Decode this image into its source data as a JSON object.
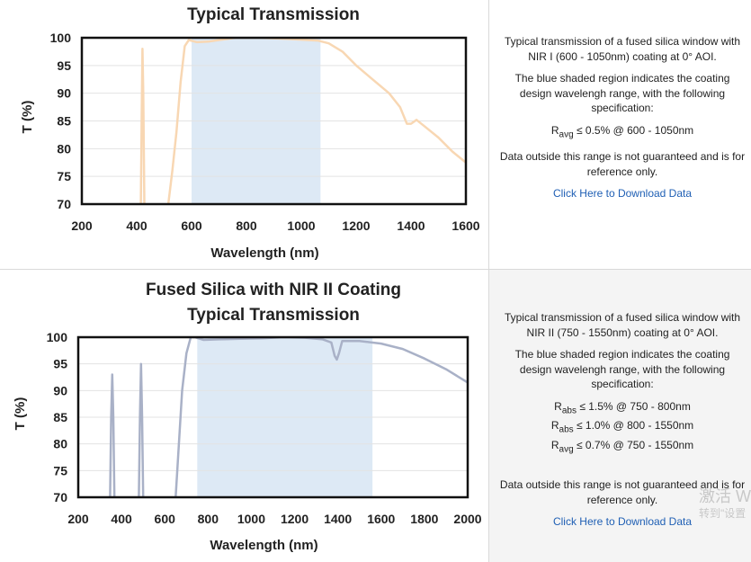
{
  "charts": [
    {
      "title_line1": "",
      "title_line2": "Typical Transmission",
      "ylabel": "T (%)",
      "xlabel": "Wavelength (nm)",
      "description": {
        "intro": "Typical transmission of a fused silica window with NIR I (600 - 1050nm) coating at 0° AOI.",
        "shaded": "The blue shaded region indicates the coating design wavelengh range, with the following specification:",
        "specs": [
          {
            "sym": "R",
            "sub": "avg",
            "text": "≤ 0.5% @ 600 - 1050nm"
          }
        ],
        "note": "Data outside this range is not guaranteed and is for reference only.",
        "link": "Click Here to Download Data"
      }
    },
    {
      "title_line1": "Fused Silica with NIR II Coating",
      "title_line2": "Typical Transmission",
      "ylabel": "T (%)",
      "xlabel": "Wavelength (nm)",
      "description": {
        "intro": "Typical transmission of a fused silica window with NIR II (750 - 1550nm) coating at 0° AOI.",
        "shaded": "The blue shaded region indicates the coating design wavelengh range, with the following specification:",
        "specs": [
          {
            "sym": "R",
            "sub": "abs",
            "text": "≤ 1.5% @ 750 - 800nm"
          },
          {
            "sym": "R",
            "sub": "abs",
            "text": "≤ 1.0% @ 800 - 1550nm"
          },
          {
            "sym": "R",
            "sub": "avg",
            "text": "≤ 0.7% @ 750 - 1550nm"
          }
        ],
        "note": "Data outside this range is not guaranteed and is for reference only.",
        "link": "Click Here to Download Data"
      }
    }
  ],
  "watermark": {
    "line1": "激活 W",
    "line2": "转到\"设置"
  },
  "chart_data": [
    {
      "type": "line",
      "title": "Typical Transmission",
      "xlabel": "Wavelength (nm)",
      "ylabel": "T (%)",
      "xlim": [
        200,
        1600
      ],
      "ylim": [
        70,
        100
      ],
      "xticks": [
        200,
        400,
        600,
        800,
        1000,
        1200,
        1400,
        1600
      ],
      "yticks": [
        70,
        75,
        80,
        85,
        90,
        95,
        100
      ],
      "grid": true,
      "shaded_region": [
        600,
        1070
      ],
      "shade_color": "#dde9f5",
      "line_color": "#f8d7b3",
      "series": [
        {
          "segments": [
            [
              [
                415,
                70
              ],
              [
                418,
                85
              ],
              [
                421,
                98
              ],
              [
                424,
                90
              ],
              [
                428,
                70
              ]
            ],
            [
              [
                515,
                70
              ],
              [
                530,
                76
              ],
              [
                545,
                83
              ],
              [
                560,
                92
              ],
              [
                575,
                98.5
              ],
              [
                590,
                99.6
              ],
              [
                620,
                99.2
              ],
              [
                660,
                99.3
              ],
              [
                700,
                99.6
              ],
              [
                760,
                100
              ],
              [
                850,
                100
              ],
              [
                950,
                99.8
              ],
              [
                1060,
                99.5
              ],
              [
                1100,
                99
              ],
              [
                1150,
                97.5
              ],
              [
                1200,
                95
              ],
              [
                1260,
                92.5
              ],
              [
                1320,
                90
              ],
              [
                1360,
                87.5
              ],
              [
                1385,
                84.5
              ],
              [
                1400,
                84.5
              ],
              [
                1420,
                85.2
              ],
              [
                1450,
                84
              ],
              [
                1500,
                82
              ],
              [
                1550,
                79.5
              ],
              [
                1600,
                77.5
              ]
            ]
          ]
        }
      ]
    },
    {
      "type": "line",
      "title": "Fused Silica with NIR II Coating Typical Transmission",
      "xlabel": "Wavelength (nm)",
      "ylabel": "T (%)",
      "xlim": [
        200,
        2000
      ],
      "ylim": [
        70,
        100
      ],
      "xticks": [
        200,
        400,
        600,
        800,
        1000,
        1200,
        1400,
        1600,
        1800,
        2000
      ],
      "yticks": [
        70,
        75,
        80,
        85,
        90,
        95,
        100
      ],
      "grid": true,
      "shaded_region": [
        750,
        1560
      ],
      "shade_color": "#dde9f5",
      "line_color": "#a9b1c7",
      "series": [
        {
          "segments": [
            [
              [
                347,
                70
              ],
              [
                352,
                85
              ],
              [
                357,
                93
              ],
              [
                362,
                85
              ],
              [
                367,
                70
              ]
            ],
            [
              [
                480,
                70
              ],
              [
                485,
                85
              ],
              [
                490,
                95
              ],
              [
                495,
                85
              ],
              [
                500,
                70
              ]
            ],
            [
              [
                650,
                70
              ],
              [
                665,
                80
              ],
              [
                680,
                90
              ],
              [
                700,
                97
              ],
              [
                720,
                100
              ],
              [
                740,
                100
              ],
              [
                780,
                99.5
              ],
              [
                850,
                99.6
              ],
              [
                950,
                99.7
              ],
              [
                1050,
                99.8
              ],
              [
                1150,
                100
              ],
              [
                1250,
                99.9
              ],
              [
                1330,
                99.6
              ],
              [
                1370,
                99
              ],
              [
                1385,
                96.5
              ],
              [
                1395,
                95.8
              ],
              [
                1405,
                97
              ],
              [
                1420,
                99.3
              ],
              [
                1500,
                99.3
              ],
              [
                1600,
                98.8
              ],
              [
                1700,
                97.8
              ],
              [
                1800,
                96
              ],
              [
                1900,
                94
              ],
              [
                2000,
                91.5
              ]
            ]
          ]
        }
      ]
    }
  ]
}
